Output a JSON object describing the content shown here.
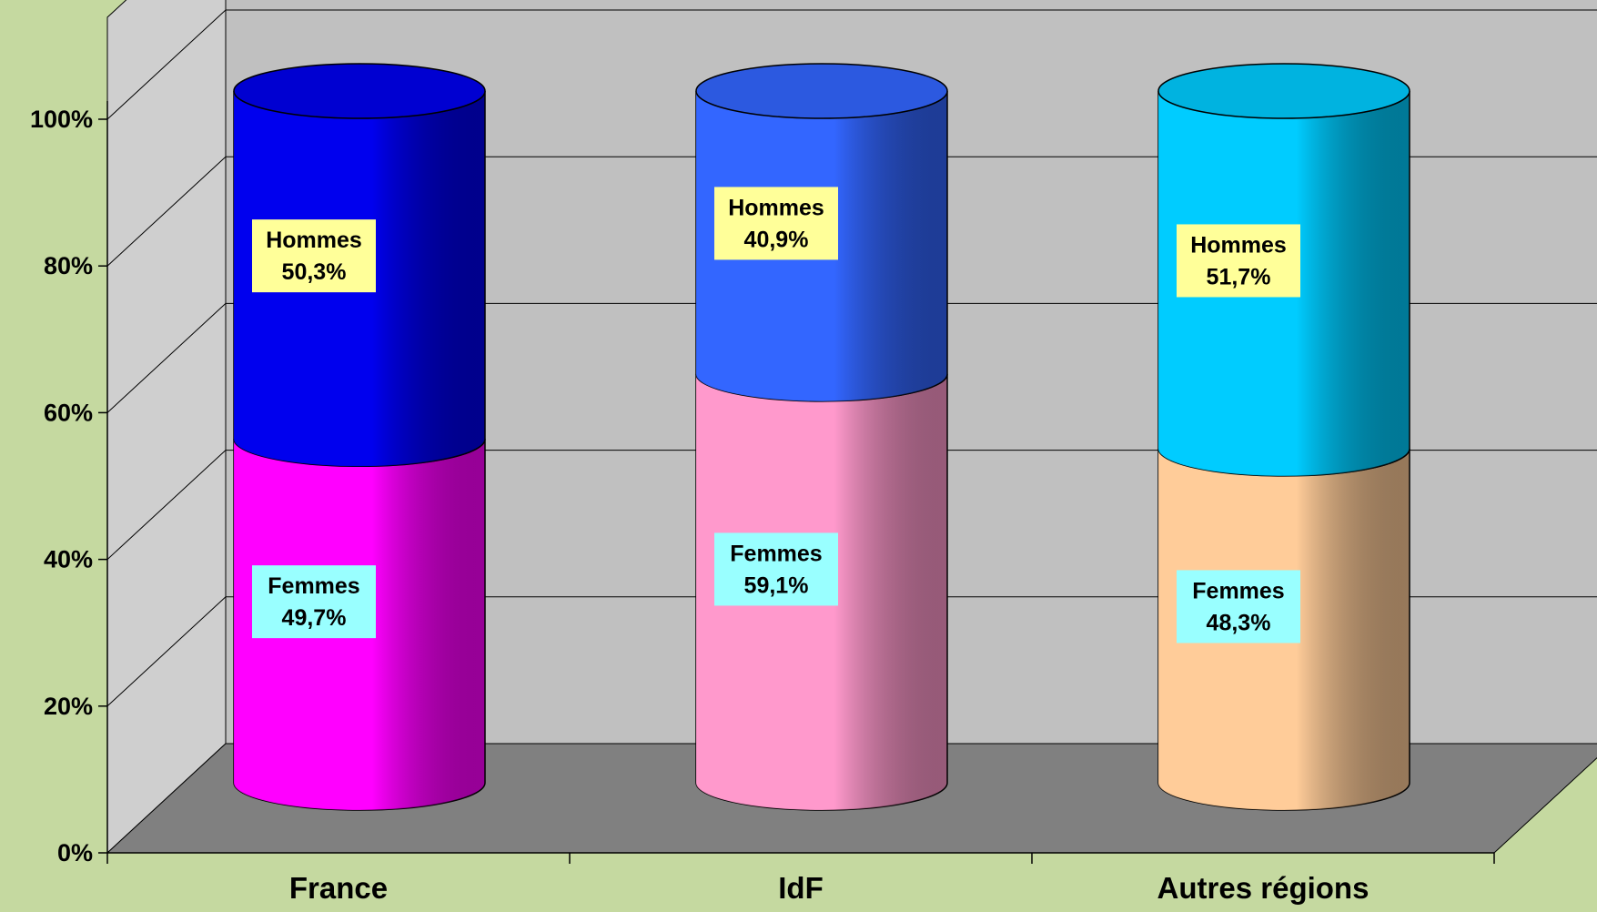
{
  "chart_data": {
    "type": "bar",
    "stacked": true,
    "style": "3d-cylinder",
    "categories": [
      "France",
      "IdF",
      "Autres régions"
    ],
    "series": [
      {
        "key": "femmes",
        "name": "Femmes",
        "values": [
          49.7,
          59.1,
          48.3
        ],
        "labels": [
          "49,7%",
          "59,1%",
          "48,3%"
        ],
        "colors": [
          "#ff00ff",
          "#ff99cc",
          "#ffcc99"
        ],
        "label_bg": "#99ffff"
      },
      {
        "key": "hommes",
        "name": "Hommes",
        "values": [
          50.3,
          40.9,
          51.7
        ],
        "labels": [
          "50,3%",
          "40,9%",
          "51,7%"
        ],
        "colors": [
          "#0000ee",
          "#3366ff",
          "#00ccff"
        ],
        "label_bg": "#ffff99"
      }
    ],
    "y_ticks": [
      {
        "value": 0,
        "label": "0%"
      },
      {
        "value": 20,
        "label": "20%"
      },
      {
        "value": 40,
        "label": "40%"
      },
      {
        "value": 60,
        "label": "60%"
      },
      {
        "value": 80,
        "label": "80%"
      },
      {
        "value": 100,
        "label": "100%"
      }
    ],
    "ylim": [
      0,
      100
    ],
    "title": "",
    "xlabel": "",
    "ylabel": "",
    "grid": true,
    "legend": "none",
    "colors": {
      "background": "#c5d9a0",
      "back_wall": "#c0c0c0",
      "side_wall": "#cfcfcf",
      "floor": "#808080"
    }
  }
}
